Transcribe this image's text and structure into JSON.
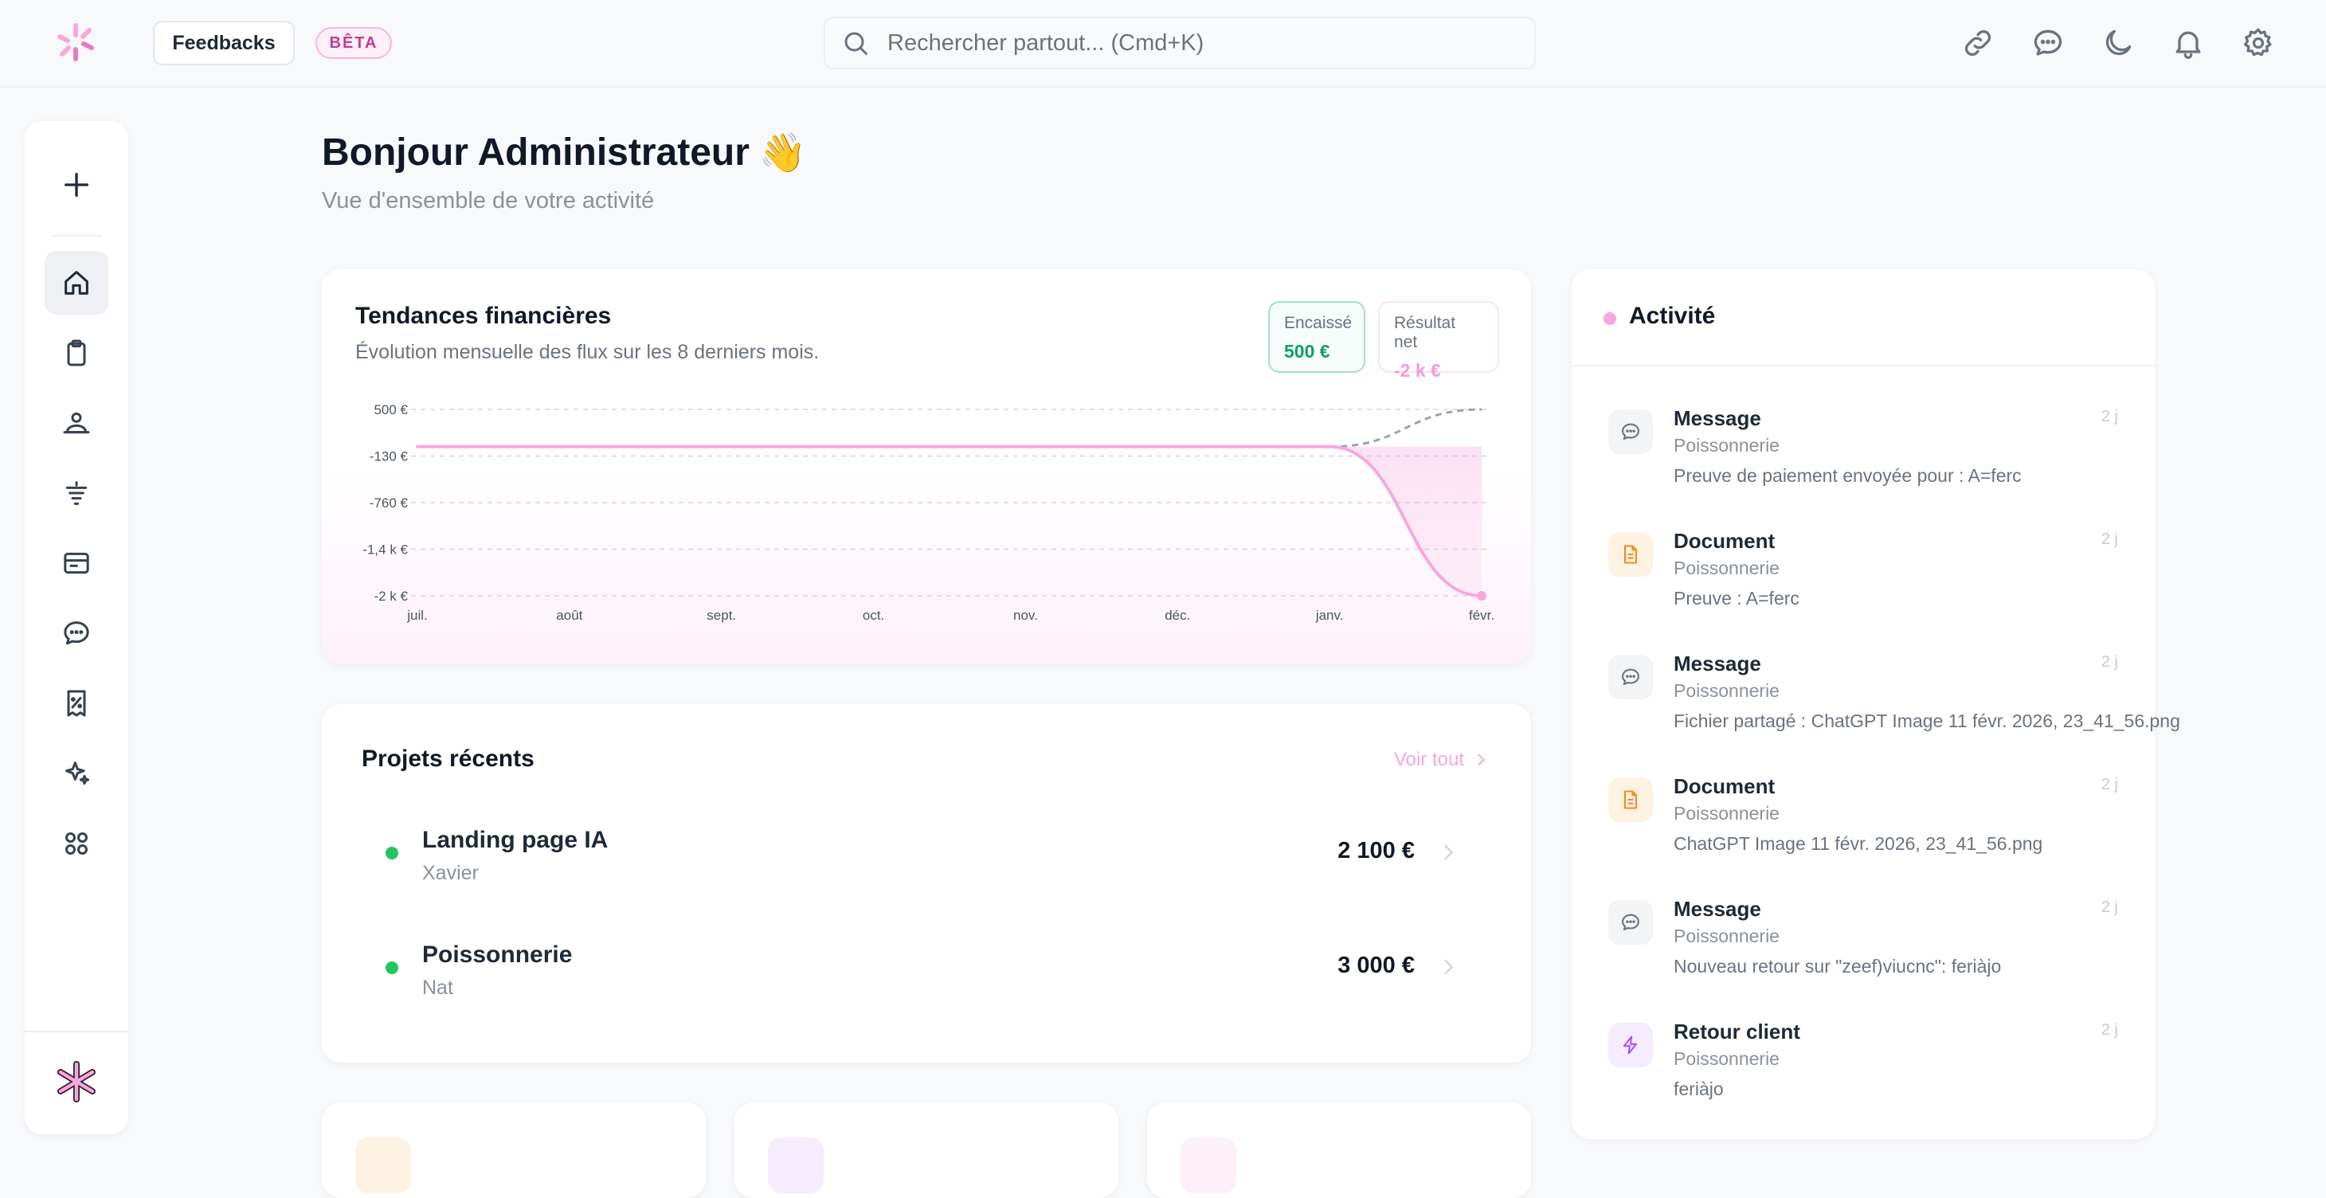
{
  "topbar": {
    "feedbacks_label": "Feedbacks",
    "beta_label": "BÊTA",
    "search_placeholder": "Rechercher partout... (Cmd+K)",
    "icons": [
      "link-icon",
      "chat-icon",
      "moon-icon",
      "bell-icon",
      "gear-icon"
    ]
  },
  "sidebar": {
    "items": [
      "plus-icon",
      "home-icon",
      "clipboard-icon",
      "users-icon",
      "filter-icon",
      "archive-icon",
      "chat-icon",
      "receipt-icon",
      "sparkles-icon",
      "grid-icon"
    ],
    "active": "home-icon"
  },
  "header": {
    "greeting": "Bonjour Administrateur",
    "emoji": "👋",
    "subtitle": "Vue d'ensemble de votre activité"
  },
  "finance": {
    "title": "Tendances financières",
    "subtitle": "Évolution mensuelle des flux sur les 8 derniers mois.",
    "kpi_cash_label": "Encaissé",
    "kpi_cash_value": "500 €",
    "kpi_net_label": "Résultat net",
    "kpi_net_value": "-2 k €"
  },
  "chart_data": {
    "type": "line",
    "x": [
      "juil.",
      "août",
      "sept.",
      "oct.",
      "nov.",
      "déc.",
      "janv.",
      "févr."
    ],
    "y_ticks": [
      "500 €",
      "-130 €",
      "-760 €",
      "-1,4 k €",
      "-2 k €"
    ],
    "ylim": [
      -2000,
      500
    ],
    "grid": true,
    "series": [
      {
        "values": [
          0,
          0,
          0,
          0,
          0,
          0,
          0,
          500
        ],
        "color": "#9ca3af",
        "style": "dashed"
      },
      {
        "values": [
          0,
          0,
          0,
          0,
          0,
          0,
          0,
          -2000
        ],
        "color": "#f7a8dc",
        "style": "solid-area"
      }
    ]
  },
  "projects": {
    "title": "Projets récents",
    "see_all": "Voir tout",
    "items": [
      {
        "name": "Landing page IA",
        "client": "Xavier",
        "amount": "2 100 €"
      },
      {
        "name": "Poissonnerie",
        "client": "Nat",
        "amount": "3 000 €"
      }
    ]
  },
  "activity": {
    "title": "Activité",
    "items": [
      {
        "type": "Message",
        "project": "Poissonnerie",
        "detail": "Preuve de paiement envoyée pour : A=ferc",
        "time": "2 j",
        "icon": "message-icon"
      },
      {
        "type": "Document",
        "project": "Poissonnerie",
        "detail": "Preuve : A=ferc",
        "time": "2 j",
        "icon": "document-icon"
      },
      {
        "type": "Message",
        "project": "Poissonnerie",
        "detail": "Fichier partagé : ChatGPT Image 11 févr. 2026, 23_41_56.png",
        "time": "2 j",
        "icon": "message-icon"
      },
      {
        "type": "Document",
        "project": "Poissonnerie",
        "detail": "ChatGPT Image 11 févr. 2026, 23_41_56.png",
        "time": "2 j",
        "icon": "document-icon"
      },
      {
        "type": "Message",
        "project": "Poissonnerie",
        "detail": "Nouveau retour sur \"zeef)viucnc\": feriàjo",
        "time": "2 j",
        "icon": "message-icon"
      },
      {
        "type": "Retour client",
        "project": "Poissonnerie",
        "detail": "feriàjo",
        "time": "2 j",
        "icon": "lightning-icon"
      }
    ]
  },
  "colors": {
    "accent_pink": "#f7a8dc",
    "success_green": "#22c55e",
    "cash_green": "#0f9d6b"
  }
}
